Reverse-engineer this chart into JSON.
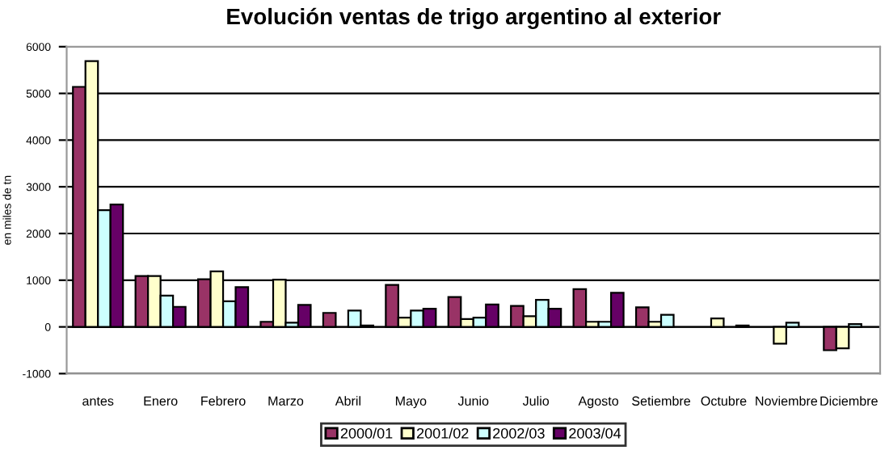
{
  "chart_data": {
    "type": "bar",
    "title": "Evolución ventas de trigo argentino al exterior",
    "ylabel": "en miles de tn",
    "categories": [
      "antes",
      "Enero",
      "Febrero",
      "Marzo",
      "Abril",
      "Mayo",
      "Junio",
      "Julio",
      "Agosto",
      "Setiembre",
      "Octubre",
      "Noviembre",
      "Diciembre"
    ],
    "series": [
      {
        "name": "2000/01",
        "color": "#993366",
        "values": [
          5140,
          1090,
          1020,
          110,
          300,
          900,
          640,
          450,
          810,
          420,
          null,
          null,
          -500
        ]
      },
      {
        "name": "2001/02",
        "color": "#ffffcc",
        "values": [
          5690,
          1090,
          1190,
          1010,
          null,
          200,
          170,
          230,
          110,
          110,
          180,
          -360,
          -460
        ]
      },
      {
        "name": "2002/03",
        "color": "#ccffff",
        "values": [
          2500,
          670,
          550,
          90,
          350,
          350,
          200,
          580,
          110,
          260,
          null,
          90,
          60
        ]
      },
      {
        "name": "2003/04",
        "color": "#660066",
        "values": [
          2620,
          430,
          850,
          470,
          30,
          390,
          480,
          390,
          730,
          null,
          30,
          null,
          null
        ]
      }
    ],
    "ylim": [
      -1000,
      6000
    ],
    "yticks": [
      -1000,
      0,
      1000,
      2000,
      3000,
      4000,
      5000,
      6000
    ],
    "grid": "y",
    "legend": "bottom"
  }
}
